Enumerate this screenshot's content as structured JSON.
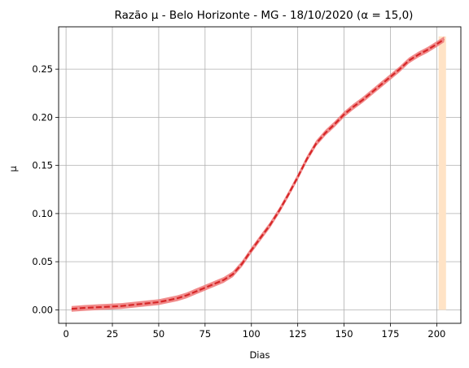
{
  "chart_data": {
    "type": "line",
    "title": "Razão µ - Belo Horizonte - MG - 18/10/2020 (α = 15,0)",
    "xlabel": "Dias",
    "ylabel": "µ",
    "xlim": [
      -4,
      213
    ],
    "ylim": [
      -0.014,
      0.294
    ],
    "xticks": [
      0,
      25,
      50,
      75,
      100,
      125,
      150,
      175,
      200
    ],
    "yticks": [
      0.0,
      0.05,
      0.1,
      0.15,
      0.2,
      0.25
    ],
    "ytick_labels": [
      "0.00",
      "0.05",
      "0.10",
      "0.15",
      "0.20",
      "0.25"
    ],
    "grid": true,
    "highlight_band": {
      "x": [
        201,
        205
      ],
      "y": [
        0.0,
        0.284
      ],
      "color": "#ffe3c6"
    },
    "series": [
      {
        "style": "dashed",
        "color": "#d62728",
        "band_color": "#f08080",
        "band_halfwidth": 0.003,
        "x": [
          3,
          10,
          20,
          30,
          40,
          50,
          55,
          60,
          65,
          70,
          75,
          80,
          85,
          90,
          95,
          100,
          105,
          110,
          115,
          120,
          125,
          130,
          135,
          140,
          145,
          150,
          155,
          160,
          165,
          170,
          175,
          180,
          185,
          190,
          195,
          200,
          204
        ],
        "y": [
          0.001,
          0.002,
          0.003,
          0.004,
          0.006,
          0.008,
          0.01,
          0.012,
          0.015,
          0.019,
          0.023,
          0.027,
          0.031,
          0.037,
          0.048,
          0.062,
          0.075,
          0.088,
          0.103,
          0.12,
          0.138,
          0.157,
          0.173,
          0.184,
          0.193,
          0.203,
          0.211,
          0.218,
          0.226,
          0.234,
          0.242,
          0.25,
          0.259,
          0.265,
          0.27,
          0.276,
          0.281
        ]
      }
    ]
  }
}
